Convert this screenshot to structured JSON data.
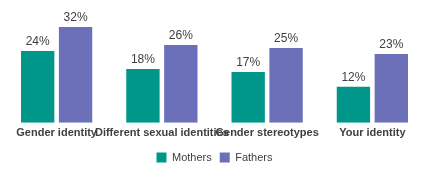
{
  "chart_data": {
    "type": "bar",
    "categories": [
      "Gender identity",
      "Different sexual identities",
      "Gender stereotypes",
      "Your identity"
    ],
    "series": [
      {
        "name": "Mothers",
        "color": "#00968a",
        "values": [
          24,
          18,
          17,
          12
        ],
        "value_labels": [
          "24%",
          "18%",
          "17%",
          "12%"
        ]
      },
      {
        "name": "Fathers",
        "color": "#6b70b8",
        "values": [
          32,
          26,
          25,
          23
        ],
        "value_labels": [
          "32%",
          "26%",
          "25%",
          "23%"
        ]
      }
    ],
    "data_labels": true,
    "tick_labels": "x",
    "grid": false,
    "legend": "bottom"
  }
}
